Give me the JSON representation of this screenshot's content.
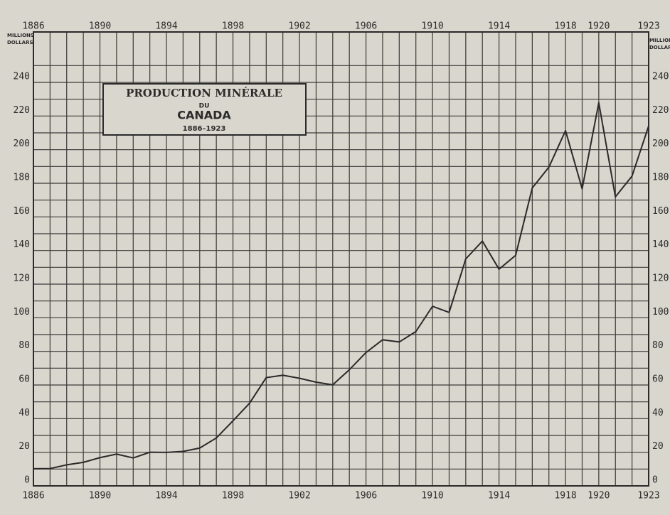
{
  "chart_data": {
    "type": "line",
    "title": [
      "PRODUCTION MINÉRALE",
      "DU",
      "CANADA"
    ],
    "subtitle": "1886–1923",
    "y_label": [
      "MILLIONS",
      "DOLLARS"
    ],
    "x": [
      1886,
      1887,
      1888,
      1889,
      1890,
      1891,
      1892,
      1893,
      1894,
      1895,
      1896,
      1897,
      1898,
      1899,
      1900,
      1901,
      1902,
      1903,
      1904,
      1905,
      1906,
      1907,
      1908,
      1909,
      1910,
      1911,
      1912,
      1913,
      1914,
      1915,
      1916,
      1917,
      1918,
      1919,
      1920,
      1921,
      1922,
      1923
    ],
    "series": [
      {
        "color": "#2a2a2a",
        "values": [
          10.2,
          10.3,
          12.5,
          14,
          16.8,
          18.9,
          16.6,
          20,
          19.9,
          20.5,
          22.5,
          28.5,
          38.7,
          49.2,
          64.4,
          65.8,
          64,
          61.7,
          60.1,
          69.1,
          79.3,
          86.9,
          85.6,
          91.8,
          106.8,
          103.2,
          135,
          145.6,
          128.9,
          137.1,
          177.2,
          189.6,
          211.3,
          176.7,
          227.9,
          171.9,
          184.3,
          214.1
        ]
      }
    ],
    "xlim": [
      1886,
      1923
    ],
    "xticks": [
      1886,
      1890,
      1894,
      1898,
      1902,
      1906,
      1910,
      1914,
      1918,
      1920,
      1923
    ],
    "ylim": [
      0,
      270
    ],
    "yticks": [
      0,
      20,
      40,
      60,
      80,
      100,
      120,
      140,
      160,
      180,
      200,
      220,
      240
    ],
    "grid": true
  }
}
